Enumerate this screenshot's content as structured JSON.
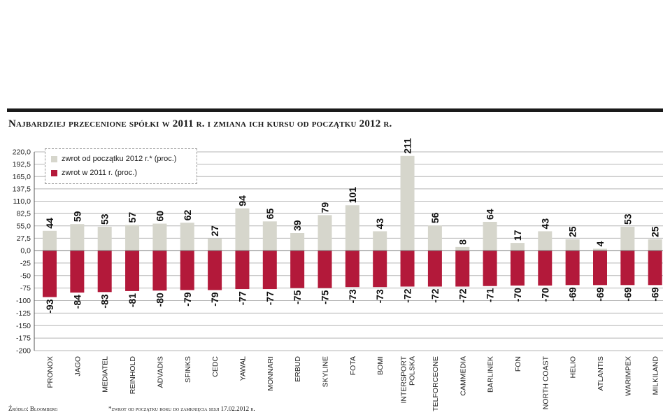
{
  "title": "Najbardziej przecenione spółki w 2011 r. i zmiana ich kursu od początku 2012 r.",
  "footer": {
    "source": "Źródło: Bloomberg",
    "note": "*zwrot od początku roku do zamknięcia sesji 17.02.2012 r."
  },
  "colors": {
    "positive": "#d6d6cc",
    "negative": "#b3193a",
    "grid": "#b5b5b5",
    "rule": "#1a1a1a"
  },
  "chart_data": {
    "type": "bar",
    "categories": [
      "PRONOX",
      "JAGO",
      "MEDIATEL",
      "REINHOLD",
      "ADVADIS",
      "SFINKS",
      "CEDC",
      "YAWAL",
      "MONNARI",
      "ERBUD",
      "SKYLINE",
      "FOTA",
      "BOMI",
      "INTERSPORT POLSKA",
      "TELFORCEONE",
      "CAMMEDIA",
      "BARLINEK",
      "FON",
      "NORTH COAST",
      "HELIO",
      "ATLANTIS",
      "WARIMPEX",
      "MILKILAND"
    ],
    "series": [
      {
        "name": "zwrot od początku 2012 r.* (proc.)",
        "values": [
          44,
          59,
          53,
          57,
          60,
          62,
          27,
          94,
          65,
          39,
          79,
          101,
          43,
          211,
          56,
          8,
          64,
          17,
          43,
          25,
          4,
          53,
          25
        ]
      },
      {
        "name": "zwrot w 2011 r. (proc.)",
        "values": [
          -93,
          -84,
          -83,
          -81,
          -80,
          -79,
          -79,
          -77,
          -77,
          -75,
          -75,
          -73,
          -73,
          -72,
          -72,
          -72,
          -71,
          -70,
          -70,
          -69,
          -69,
          -69,
          -69
        ]
      }
    ],
    "yticks_positive": [
      "220,0",
      "192,5",
      "165,0",
      "137,5",
      "110,0",
      "82,5",
      "55,0",
      "27,5",
      "0,0"
    ],
    "yticks_negative": [
      "-25",
      "-50",
      "-75",
      "-100",
      "-125",
      "-150",
      "-175",
      "-200"
    ],
    "ylim_positive": [
      0,
      220
    ],
    "ylim_negative": [
      -200,
      0
    ],
    "grid": true,
    "legend": "top-left"
  }
}
